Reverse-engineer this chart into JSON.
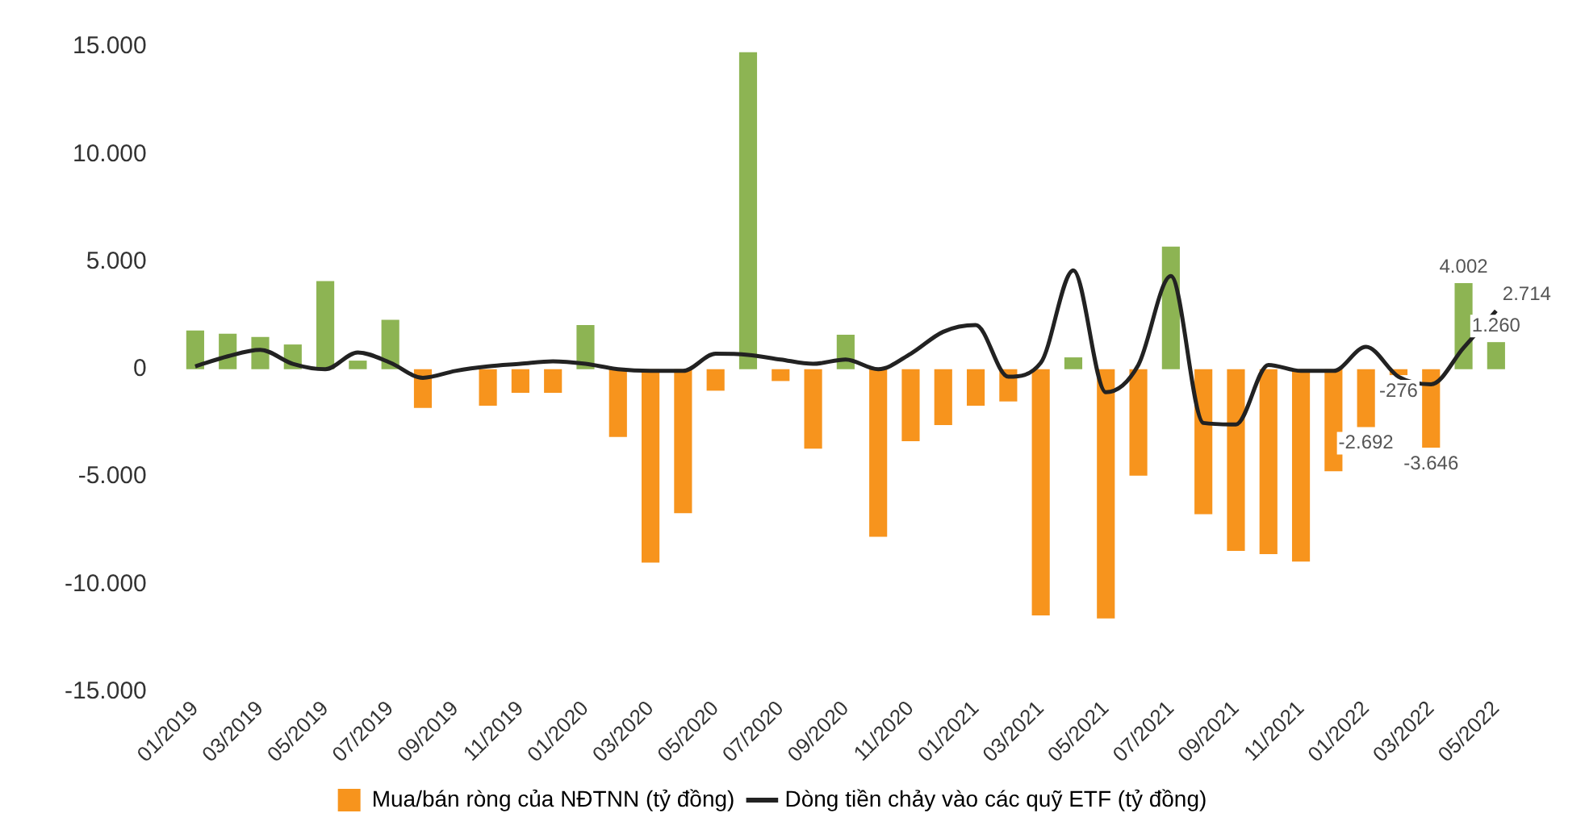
{
  "chart_data": {
    "type": "bar",
    "categories": [
      "01/2019",
      null,
      "03/2019",
      null,
      "05/2019",
      null,
      "07/2019",
      null,
      "09/2019",
      null,
      "11/2019",
      null,
      "01/2020",
      null,
      "03/2020",
      null,
      "05/2020",
      null,
      "07/2020",
      null,
      "09/2020",
      null,
      "11/2020",
      null,
      "01/2021",
      null,
      "03/2021",
      null,
      "05/2021",
      null,
      "07/2021",
      null,
      "09/2021",
      null,
      "11/2021",
      null,
      "01/2022",
      null,
      "03/2022",
      null,
      "05/2022"
    ],
    "series": [
      {
        "name": "Mua/bán ròng của NĐTNN (tỷ đồng)",
        "color": "#f7941d",
        "colors": [
          "#8db453",
          "#8db453",
          "#8db453",
          "#8db453",
          "#8db453",
          "#8db453",
          "#8db453",
          "#f7941d",
          "#f7941d",
          "#f7941d",
          "#f7941d",
          "#f7941d",
          "#8db453",
          "#f7941d",
          "#f7941d",
          "#f7941d",
          "#f7941d",
          "#8db453",
          "#f7941d",
          "#f7941d",
          "#8db453",
          "#f7941d",
          "#f7941d",
          "#f7941d",
          "#f7941d",
          "#f7941d",
          "#f7941d",
          "#8db453",
          "#f7941d",
          "#f7941d",
          "#8db453",
          "#f7941d",
          "#f7941d",
          "#f7941d",
          "#f7941d",
          "#f7941d",
          "#f7941d",
          "#f7941d",
          "#f7941d",
          "#8db453",
          "#8db453"
        ],
        "values": [
          1800,
          1650,
          1500,
          1150,
          4100,
          400,
          2300,
          -1800,
          0,
          -1700,
          -1100,
          -1100,
          2050,
          -3150,
          -9000,
          -6700,
          -1000,
          14750,
          -550,
          -3700,
          1600,
          -7800,
          -3350,
          -2600,
          -1700,
          -1500,
          -11450,
          550,
          -11600,
          -4950,
          5700,
          -6750,
          -8450,
          -8600,
          -8950,
          -4750,
          -2692,
          -276,
          -3646,
          4002,
          1260
        ],
        "value_labels": [
          null,
          null,
          null,
          null,
          null,
          null,
          null,
          null,
          null,
          null,
          null,
          null,
          null,
          null,
          null,
          null,
          null,
          null,
          null,
          null,
          null,
          null,
          null,
          null,
          null,
          null,
          null,
          null,
          null,
          null,
          null,
          null,
          null,
          null,
          null,
          null,
          "-2.692",
          "-276",
          "-3.646",
          "4.002",
          "1.260"
        ]
      },
      {
        "name": "Dòng tiền chảy vào các quỹ ETF (tỷ đồng)",
        "type": "line",
        "color": "#222222",
        "values": [
          130,
          600,
          900,
          250,
          0,
          780,
          300,
          -400,
          -80,
          130,
          250,
          370,
          250,
          0,
          -80,
          -80,
          720,
          670,
          450,
          250,
          450,
          0,
          720,
          1740,
          2050,
          -350,
          300,
          4600,
          -1070,
          200,
          4330,
          -2500,
          -2570,
          200,
          -80,
          -80,
          1040,
          -350,
          -700,
          1000,
          2714
        ],
        "value_labels": [
          null,
          null,
          null,
          null,
          null,
          null,
          null,
          null,
          null,
          null,
          null,
          null,
          null,
          null,
          null,
          null,
          null,
          null,
          null,
          null,
          null,
          null,
          null,
          null,
          null,
          null,
          null,
          null,
          null,
          null,
          null,
          null,
          null,
          null,
          null,
          null,
          null,
          null,
          null,
          null,
          "2.714"
        ]
      }
    ],
    "ylim": [
      -15000,
      15000
    ],
    "yticks": [
      {
        "value": -15000,
        "label": "-15.000"
      },
      {
        "value": -10000,
        "label": "-10.000"
      },
      {
        "value": -5000,
        "label": "-5.000"
      },
      {
        "value": 0,
        "label": "0"
      },
      {
        "value": 5000,
        "label": "5.000"
      },
      {
        "value": 10000,
        "label": "10.000"
      },
      {
        "value": 15000,
        "label": "15.000"
      }
    ],
    "grid": false,
    "legend": "bottom",
    "marker": "none",
    "line_style": "solid"
  }
}
